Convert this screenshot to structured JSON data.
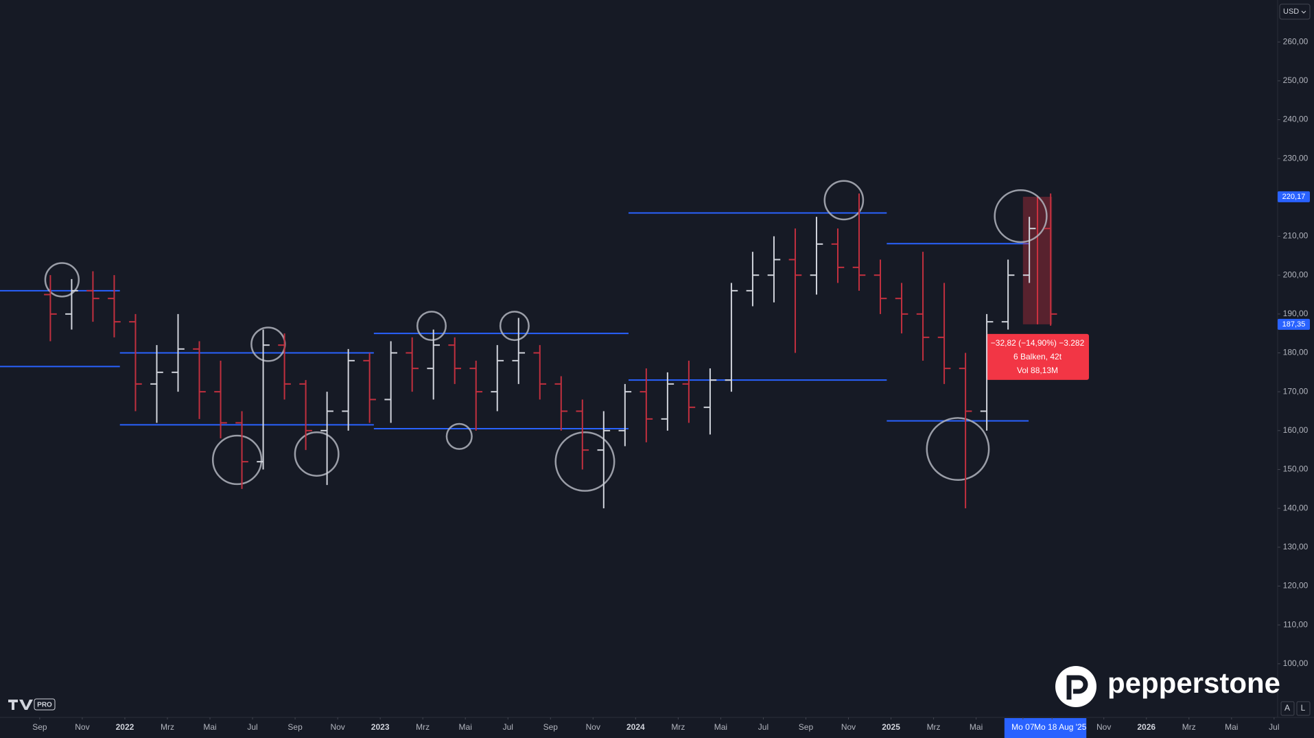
{
  "chart_data": {
    "type": "ohlc",
    "x": [
      "2021-09",
      "2021-10",
      "2021-11",
      "2021-12",
      "2022-01",
      "2022-02",
      "2022-03",
      "2022-04",
      "2022-05",
      "2022-06",
      "2022-07",
      "2022-08",
      "2022-09",
      "2022-10",
      "2022-11",
      "2022-12",
      "2023-01",
      "2023-02",
      "2023-03",
      "2023-04",
      "2023-05",
      "2023-06",
      "2023-07",
      "2023-08",
      "2023-09",
      "2023-10",
      "2023-11",
      "2023-12",
      "2024-01",
      "2024-02",
      "2024-03",
      "2024-04",
      "2024-05",
      "2024-06",
      "2024-07",
      "2024-08",
      "2024-09",
      "2024-10",
      "2024-11",
      "2024-12",
      "2025-01",
      "2025-02",
      "2025-03",
      "2025-04",
      "2025-05",
      "2025-06",
      "2025-07",
      "2025-08"
    ],
    "ohlc": [
      [
        195,
        200,
        183,
        190
      ],
      [
        190,
        199,
        186,
        196
      ],
      [
        196,
        201,
        188,
        194
      ],
      [
        194,
        200,
        184,
        188
      ],
      [
        188,
        190,
        165,
        172
      ],
      [
        172,
        182,
        162,
        175
      ],
      [
        175,
        190,
        170,
        181
      ],
      [
        181,
        183,
        163,
        170
      ],
      [
        170,
        178,
        158,
        162
      ],
      [
        162,
        165,
        145,
        152
      ],
      [
        152,
        186,
        150,
        182
      ],
      [
        182,
        185,
        168,
        172
      ],
      [
        172,
        173,
        155,
        160
      ],
      [
        160,
        170,
        146,
        165
      ],
      [
        165,
        181,
        160,
        178
      ],
      [
        178,
        180,
        162,
        168
      ],
      [
        168,
        183,
        162,
        180
      ],
      [
        180,
        184,
        170,
        176
      ],
      [
        176,
        186,
        168,
        182
      ],
      [
        182,
        184,
        172,
        176
      ],
      [
        176,
        178,
        160,
        170
      ],
      [
        170,
        182,
        165,
        178
      ],
      [
        178,
        189,
        172,
        180
      ],
      [
        180,
        182,
        168,
        172
      ],
      [
        172,
        174,
        160,
        165
      ],
      [
        165,
        168,
        150,
        155
      ],
      [
        155,
        165,
        140,
        160
      ],
      [
        160,
        172,
        156,
        170
      ],
      [
        170,
        176,
        157,
        163
      ],
      [
        163,
        175,
        160,
        172
      ],
      [
        172,
        178,
        162,
        166
      ],
      [
        166,
        176,
        159,
        173
      ],
      [
        173,
        198,
        170,
        196
      ],
      [
        196,
        206,
        192,
        200
      ],
      [
        200,
        210,
        193,
        204
      ],
      [
        204,
        212,
        180,
        200
      ],
      [
        200,
        215,
        195,
        208
      ],
      [
        208,
        212,
        198,
        202
      ],
      [
        202,
        221,
        196,
        200
      ],
      [
        200,
        204,
        190,
        194
      ],
      [
        194,
        198,
        185,
        190
      ],
      [
        190,
        206,
        178,
        184
      ],
      [
        184,
        198,
        172,
        176
      ],
      [
        176,
        180,
        140,
        165
      ],
      [
        165,
        190,
        160,
        188
      ],
      [
        188,
        204,
        186,
        200
      ],
      [
        200,
        215,
        198,
        212
      ],
      [
        212,
        221,
        187,
        190
      ]
    ],
    "up_color": "#d1d4dc",
    "down_color": "#c2303f",
    "xlim": [
      "2021-07-05",
      "2026-07-06"
    ],
    "xticks": [
      {
        "value": "2021-09",
        "label": "Sep"
      },
      {
        "value": "2021-11",
        "label": "Nov"
      },
      {
        "value": "2022-01",
        "label": "2022"
      },
      {
        "value": "2022-03",
        "label": "Mrz"
      },
      {
        "value": "2022-05",
        "label": "Mai"
      },
      {
        "value": "2022-07",
        "label": "Jul"
      },
      {
        "value": "2022-09",
        "label": "Sep"
      },
      {
        "value": "2022-11",
        "label": "Nov"
      },
      {
        "value": "2023-01",
        "label": "2023"
      },
      {
        "value": "2023-03",
        "label": "Mrz"
      },
      {
        "value": "2023-05",
        "label": "Mai"
      },
      {
        "value": "2023-07",
        "label": "Jul"
      },
      {
        "value": "2023-09",
        "label": "Sep"
      },
      {
        "value": "2023-11",
        "label": "Nov"
      },
      {
        "value": "2024-01",
        "label": "2024"
      },
      {
        "value": "2024-03",
        "label": "Mrz"
      },
      {
        "value": "2024-05",
        "label": "Mai"
      },
      {
        "value": "2024-07",
        "label": "Jul"
      },
      {
        "value": "2024-09",
        "label": "Sep"
      },
      {
        "value": "2024-11",
        "label": "Nov"
      },
      {
        "value": "2025-01",
        "label": "2025"
      },
      {
        "value": "2025-03",
        "label": "Mrz"
      },
      {
        "value": "2025-05",
        "label": "Mai"
      },
      {
        "value": "2025-07-07",
        "label": "Mo 07",
        "highlight": true
      },
      {
        "value": "2025-08-18",
        "label": "Mo 18 Aug '25",
        "highlight": true
      },
      {
        "value": "2025-11",
        "label": "Nov"
      },
      {
        "value": "2026-01",
        "label": "2026"
      },
      {
        "value": "2026-03",
        "label": "Mrz"
      },
      {
        "value": "2026-05",
        "label": "Mai"
      },
      {
        "value": "2026-07",
        "label": "Jul"
      }
    ],
    "ylim": [
      86.2,
      270.8
    ],
    "yticks": [
      {
        "value": 100,
        "label": "100,00"
      },
      {
        "value": 110,
        "label": "110,00"
      },
      {
        "value": 120,
        "label": "120,00"
      },
      {
        "value": 130,
        "label": "130,00"
      },
      {
        "value": 140,
        "label": "140,00"
      },
      {
        "value": 150,
        "label": "150,00"
      },
      {
        "value": 160,
        "label": "160,00"
      },
      {
        "value": 170,
        "label": "170,00"
      },
      {
        "value": 180,
        "label": "180,00"
      },
      {
        "value": 190,
        "label": "190,00"
      },
      {
        "value": 200,
        "label": "200,00"
      },
      {
        "value": 210,
        "label": "210,00"
      },
      {
        "value": 220,
        "label": "220,00"
      },
      {
        "value": 230,
        "label": "230,00"
      },
      {
        "value": 240,
        "label": "240,00"
      },
      {
        "value": 250,
        "label": "250,00"
      },
      {
        "value": 260,
        "label": "260,00"
      }
    ],
    "price_labels": [
      {
        "value": 220.17,
        "label": "220,17"
      },
      {
        "value": 187.35,
        "label": "187,35"
      }
    ],
    "levels_color": "#2962ff",
    "levels": [
      {
        "y": 196,
        "from": "2021-07-05",
        "to": "2021-12-24"
      },
      {
        "y": 176.5,
        "from": "2021-07-05",
        "to": "2021-12-24"
      },
      {
        "y": 180,
        "from": "2021-12-24",
        "to": "2022-12-22"
      },
      {
        "y": 161.5,
        "from": "2021-12-24",
        "to": "2022-12-22"
      },
      {
        "y": 185,
        "from": "2022-12-22",
        "to": "2023-12-21"
      },
      {
        "y": 160.5,
        "from": "2022-12-22",
        "to": "2023-12-21"
      },
      {
        "y": 216,
        "from": "2023-12-21",
        "to": "2024-12-25"
      },
      {
        "y": 173,
        "from": "2023-12-21",
        "to": "2024-12-25"
      },
      {
        "y": 208.1,
        "from": "2024-12-25",
        "to": "2025-07-15"
      },
      {
        "y": 162.5,
        "from": "2024-12-25",
        "to": "2025-07-15"
      }
    ],
    "tooltip": [
      "−32,82 (−14,90%) −3.282",
      "6 Balken, 42t",
      "Vol 88,13M"
    ]
  },
  "ui": {
    "currency": "USD",
    "buttons": [
      "A",
      "L"
    ],
    "brand": "pepperstone",
    "badge": "PRO"
  }
}
